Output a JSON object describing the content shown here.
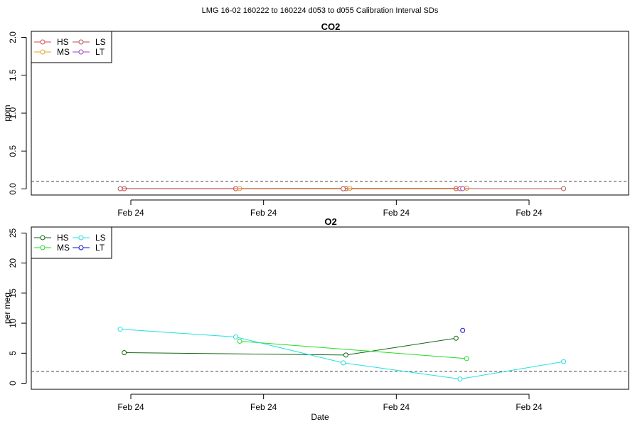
{
  "figure_title": "LMG   16-02    160222 to 160224    d053 to d055   Calibration Interval SDs",
  "chart_data": [
    {
      "type": "line",
      "title": "CO2",
      "xlabel": "",
      "ylabel": "ppm",
      "xlim": [
        -0.75,
        3.75
      ],
      "ylim": [
        -0.08,
        2.08
      ],
      "yticks": [
        0.0,
        0.5,
        1.0,
        1.5,
        2.0
      ],
      "ytick_labels": [
        "0.0",
        "0.5",
        "1.0",
        "1.5",
        "2.0"
      ],
      "xticks": [
        0,
        1,
        2,
        3
      ],
      "xtick_labels": [
        "Feb 24",
        "Feb 24",
        "Feb 24",
        "Feb 24"
      ],
      "threshold": 0.1,
      "legend_placement": "top-left",
      "legend_columns": [
        [
          "HS",
          "MS"
        ],
        [
          "LS",
          "LT"
        ]
      ],
      "series": [
        {
          "name": "HS",
          "color": "#dd4444",
          "x": [
            -0.05,
            0.79,
            1.62,
            2.45
          ],
          "y": [
            0.003,
            0.003,
            0.003,
            0.004
          ]
        },
        {
          "name": "MS",
          "color": "#e3a628",
          "x": [
            0.82,
            1.65,
            2.53
          ],
          "y": [
            0.006,
            0.008,
            0.009
          ]
        },
        {
          "name": "LS",
          "color": "#b05050",
          "x": [
            -0.08,
            1.6,
            2.48,
            3.26
          ],
          "y": [
            0.003,
            0.002,
            0.003,
            0.004
          ]
        },
        {
          "name": "LT",
          "color": "#a040c0",
          "x": [
            2.5
          ],
          "y": [
            0.004
          ]
        }
      ]
    },
    {
      "type": "line",
      "title": "O2",
      "xlabel": "Date",
      "ylabel": "per meg",
      "xlim": [
        -0.75,
        3.75
      ],
      "ylim": [
        -1.0,
        26.0
      ],
      "yticks": [
        0,
        5,
        10,
        15,
        20,
        25
      ],
      "ytick_labels": [
        "0",
        "5",
        "10",
        "15",
        "20",
        "25"
      ],
      "xticks": [
        0,
        1,
        2,
        3
      ],
      "xtick_labels": [
        "Feb 24",
        "Feb 24",
        "Feb 24",
        "Feb 24"
      ],
      "threshold": 2,
      "legend_placement": "top-left",
      "legend_columns": [
        [
          "HS",
          "MS"
        ],
        [
          "LS",
          "LT"
        ]
      ],
      "series": [
        {
          "name": "HS",
          "color": "#116611",
          "x": [
            -0.05,
            1.62,
            2.45
          ],
          "y": [
            5.1,
            4.7,
            7.5
          ]
        },
        {
          "name": "MS",
          "color": "#22dd22",
          "x": [
            0.82,
            2.53
          ],
          "y": [
            7.0,
            4.1
          ]
        },
        {
          "name": "LS",
          "color": "#22e0e0",
          "x": [
            -0.08,
            0.79,
            1.6,
            2.48,
            3.26
          ],
          "y": [
            9.0,
            7.7,
            3.4,
            0.7,
            3.6
          ]
        },
        {
          "name": "LT",
          "color": "#1010cc",
          "x": [
            2.5
          ],
          "y": [
            8.8
          ]
        }
      ]
    }
  ]
}
